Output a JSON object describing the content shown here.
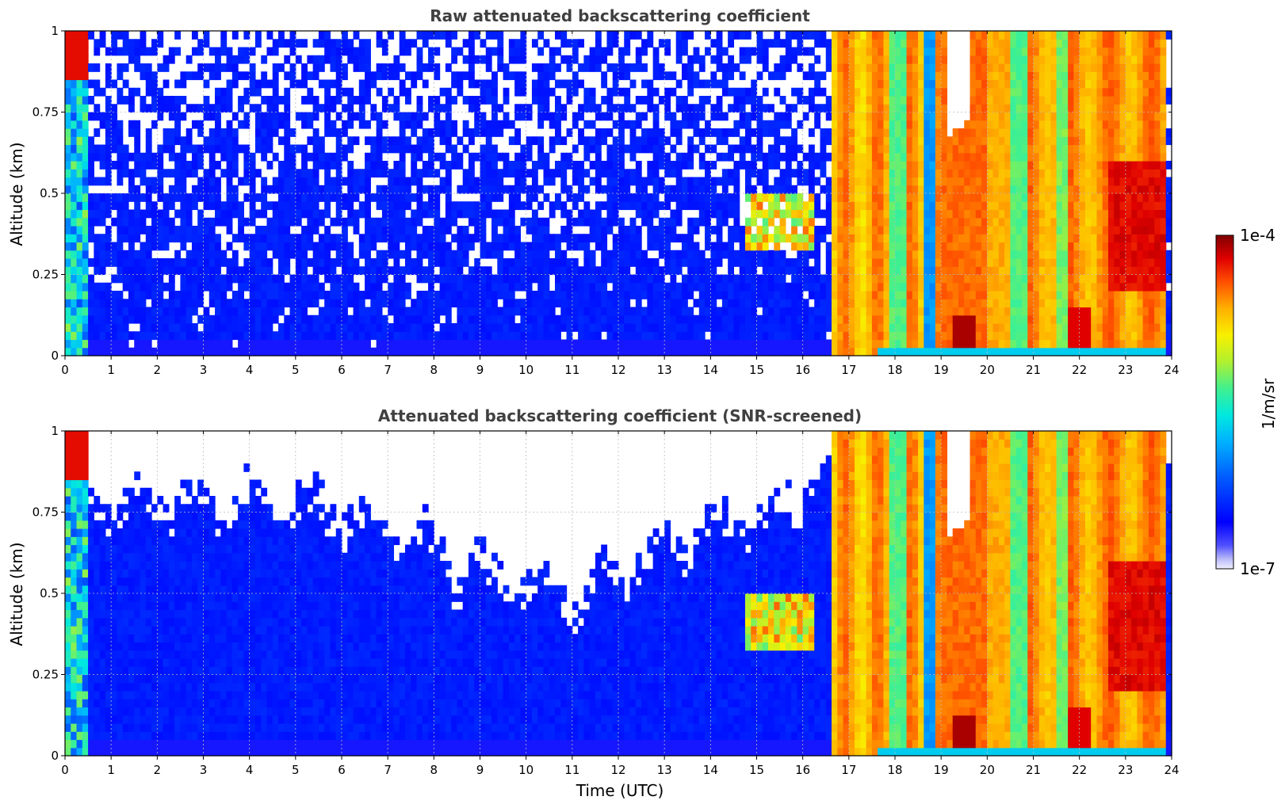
{
  "chart_data": [
    {
      "type": "heatmap",
      "title": "Raw attenuated backscattering coefficient",
      "xlabel": "",
      "ylabel": "Altitude (km)",
      "xlim": [
        0,
        24
      ],
      "ylim": [
        0,
        1
      ],
      "xticks": [
        "0",
        "1",
        "2",
        "3",
        "4",
        "5",
        "6",
        "7",
        "8",
        "9",
        "10",
        "11",
        "12",
        "13",
        "14",
        "15",
        "16",
        "17",
        "18",
        "19",
        "20",
        "21",
        "22",
        "23",
        "24"
      ],
      "yticks": [
        "0",
        "0.25",
        "0.5",
        "0.75",
        "1"
      ],
      "ytick_values": [
        0,
        0.25,
        0.5,
        0.75,
        1
      ],
      "grid": true,
      "screened": false
    },
    {
      "type": "heatmap",
      "title": "Attenuated backscattering coefficient (SNR-screened)",
      "xlabel": "Time (UTC)",
      "ylabel": "Altitude (km)",
      "xlim": [
        0,
        24
      ],
      "ylim": [
        0,
        1
      ],
      "xticks": [
        "0",
        "1",
        "2",
        "3",
        "4",
        "5",
        "6",
        "7",
        "8",
        "9",
        "10",
        "11",
        "12",
        "13",
        "14",
        "15",
        "16",
        "17",
        "18",
        "19",
        "20",
        "21",
        "22",
        "23",
        "24"
      ],
      "yticks": [
        "0",
        "0.25",
        "0.5",
        "0.75",
        "1"
      ],
      "ytick_values": [
        0,
        0.25,
        0.5,
        0.75,
        1
      ],
      "grid": true,
      "screened": true
    }
  ],
  "colorbar": {
    "label": "1/m/sr",
    "max_label": "1e-4",
    "min_label": "1e-7",
    "scale": "log",
    "range": [
      1e-07,
      0.0001
    ],
    "colormap": "jet"
  }
}
